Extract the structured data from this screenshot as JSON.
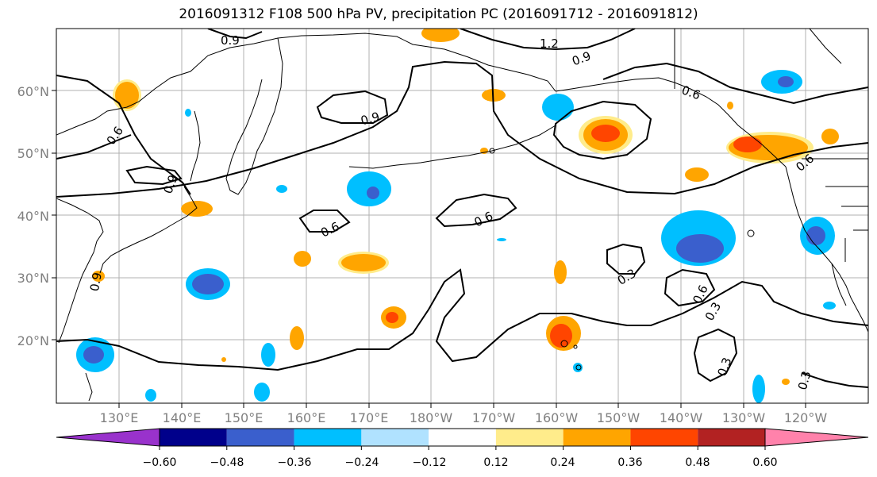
{
  "title": "2016091312 F108 500 hPa PV, precipitation PC (2016091712 - 2016091812)",
  "map": {
    "lon_labels": [
      "130°E",
      "140°E",
      "150°E",
      "160°E",
      "170°E",
      "180°W",
      "170°W",
      "160°W",
      "150°W",
      "140°W",
      "130°W",
      "120°W"
    ],
    "lat_labels": [
      "60°N",
      "50°N",
      "40°N",
      "30°N",
      "20°N"
    ],
    "contour_labels": [
      "0.9",
      "1.2",
      "0.9",
      "0.6",
      "0.9",
      "0.6",
      "0.9",
      "0.6",
      "0.6",
      "0.6",
      "0.3",
      "0.6",
      "0.3",
      "0.3",
      "0.3",
      "0.9"
    ]
  },
  "colorbar": {
    "colors": [
      "#9932cc",
      "#00008b",
      "#3a5fcd",
      "#00bfff",
      "#b0e2ff",
      "#ffffff",
      "#ffec8b",
      "#ffa500",
      "#ff4500",
      "#b22222",
      "#ff82ab"
    ],
    "tick_labels": [
      "−0.60",
      "−0.48",
      "−0.36",
      "−0.24",
      "−0.12",
      "0.12",
      "0.24",
      "0.36",
      "0.48",
      "0.60"
    ]
  }
}
